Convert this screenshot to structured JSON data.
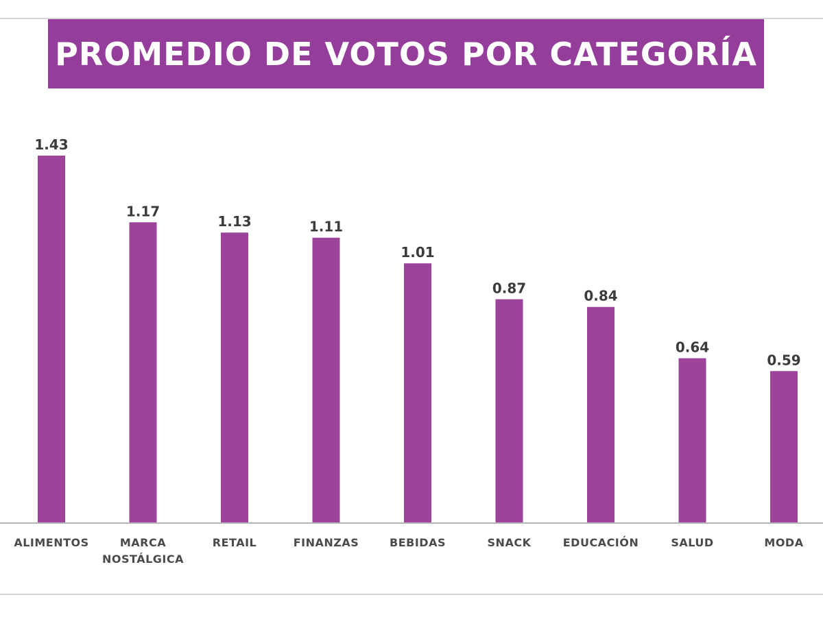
{
  "colors": {
    "accent": "#953d9b",
    "bar": "#9b4499",
    "axis": "#b5b5b5",
    "rule": "#d6d6d6"
  },
  "chart_data": {
    "type": "bar",
    "title": "PROMEDIO DE VOTOS POR CATEGORÍA",
    "xlabel": "",
    "ylabel": "",
    "ylim": [
      0,
      1.43
    ],
    "grid": false,
    "legend": "none",
    "categories": [
      [
        "ALIMENTOS"
      ],
      [
        "MARCA",
        "NOSTÁLGICA"
      ],
      [
        "RETAIL"
      ],
      [
        "FINANZAS"
      ],
      [
        "BEBIDAS"
      ],
      [
        "SNACK"
      ],
      [
        "EDUCACIÓN"
      ],
      [
        "SALUD"
      ],
      [
        "MODA"
      ]
    ],
    "values": [
      1.43,
      1.17,
      1.13,
      1.11,
      1.01,
      0.87,
      0.84,
      0.64,
      0.59
    ],
    "value_labels": [
      "1.43",
      "1.17",
      "1.13",
      "1.11",
      "1.01",
      "0.87",
      "0.84",
      "0.64",
      "0.59"
    ]
  }
}
